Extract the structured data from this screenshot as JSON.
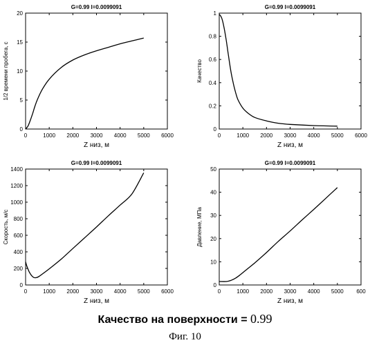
{
  "chart_data": [
    {
      "type": "line",
      "title": "G=0.99   l=0.0099091",
      "xlabel": "Z низ, м",
      "ylabel": "1/2 времени пробега, с",
      "xlim": [
        0,
        6000
      ],
      "ylim": [
        0,
        20
      ],
      "x_ticks": [
        "0",
        "1000",
        "2000",
        "3000",
        "4000",
        "5000",
        "6000"
      ],
      "y_ticks": [
        "0",
        "5",
        "10",
        "15",
        "20"
      ],
      "grid": false,
      "series": [
        {
          "values": [
            [
              0,
              0
            ],
            [
              100,
              0.5
            ],
            [
              200,
              1.5
            ],
            [
              300,
              2.7
            ],
            [
              400,
              4.0
            ],
            [
              500,
              5.1
            ],
            [
              700,
              6.8
            ],
            [
              1000,
              8.6
            ],
            [
              1500,
              10.6
            ],
            [
              2000,
              11.9
            ],
            [
              2500,
              12.8
            ],
            [
              3000,
              13.5
            ],
            [
              3500,
              14.1
            ],
            [
              4000,
              14.7
            ],
            [
              4500,
              15.2
            ],
            [
              5000,
              15.7
            ]
          ]
        }
      ]
    },
    {
      "type": "line",
      "title": "G=0.99   l=0.0099091",
      "xlabel": "Z низ, м",
      "ylabel": "Качество",
      "xlim": [
        0,
        6000
      ],
      "ylim": [
        0,
        1
      ],
      "x_ticks": [
        "0",
        "1000",
        "2000",
        "3000",
        "4000",
        "5000",
        "6000"
      ],
      "y_ticks": [
        "0",
        "0.2",
        "0.4",
        "0.6",
        "0.8",
        "1"
      ],
      "grid": false,
      "series": [
        {
          "values": [
            [
              0,
              0.99
            ],
            [
              100,
              0.96
            ],
            [
              200,
              0.88
            ],
            [
              300,
              0.76
            ],
            [
              400,
              0.62
            ],
            [
              500,
              0.49
            ],
            [
              600,
              0.39
            ],
            [
              700,
              0.31
            ],
            [
              800,
              0.25
            ],
            [
              1000,
              0.18
            ],
            [
              1200,
              0.14
            ],
            [
              1500,
              0.1
            ],
            [
              2000,
              0.07
            ],
            [
              2500,
              0.05
            ],
            [
              3000,
              0.04
            ],
            [
              4000,
              0.03
            ],
            [
              5000,
              0.025
            ]
          ]
        }
      ]
    },
    {
      "type": "line",
      "title": "G=0.99   l=0.0099091",
      "xlabel": "Z низ, м",
      "ylabel": "Скорость, м/с",
      "xlim": [
        0,
        6000
      ],
      "ylim": [
        0,
        1400
      ],
      "x_ticks": [
        "0",
        "1000",
        "2000",
        "3000",
        "4000",
        "5000",
        "6000"
      ],
      "y_ticks": [
        "0",
        "200",
        "400",
        "600",
        "800",
        "1000",
        "1200",
        "1400"
      ],
      "grid": false,
      "series": [
        {
          "values": [
            [
              0,
              280
            ],
            [
              50,
              230
            ],
            [
              150,
              160
            ],
            [
              250,
              115
            ],
            [
              350,
              90
            ],
            [
              450,
              88
            ],
            [
              550,
              100
            ],
            [
              700,
              130
            ],
            [
              1000,
              195
            ],
            [
              1500,
              310
            ],
            [
              2000,
              440
            ],
            [
              2500,
              570
            ],
            [
              3000,
              700
            ],
            [
              3500,
              835
            ],
            [
              4000,
              965
            ],
            [
              4500,
              1100
            ],
            [
              5000,
              1355
            ]
          ]
        }
      ]
    },
    {
      "type": "line",
      "title": "G=0.99   l=0.0099091",
      "xlabel": "Z низ, м",
      "ylabel": "Давление, МПа",
      "xlim": [
        0,
        6000
      ],
      "ylim": [
        0,
        50
      ],
      "x_ticks": [
        "0",
        "1000",
        "2000",
        "3000",
        "4000",
        "5000",
        "600"
      ],
      "y_ticks": [
        "0",
        "10",
        "20",
        "30",
        "40",
        "50"
      ],
      "grid": false,
      "series": [
        {
          "values": [
            [
              0,
              1.5
            ],
            [
              300,
              1.5
            ],
            [
              500,
              2.0
            ],
            [
              700,
              3.0
            ],
            [
              900,
              4.5
            ],
            [
              1200,
              7.0
            ],
            [
              1500,
              9.5
            ],
            [
              2000,
              14.0
            ],
            [
              2500,
              18.8
            ],
            [
              3000,
              23.3
            ],
            [
              3500,
              28.0
            ],
            [
              4000,
              32.6
            ],
            [
              4500,
              37.3
            ],
            [
              5000,
              42.0
            ]
          ]
        }
      ]
    }
  ],
  "caption": {
    "label": "Качество на поверхности =",
    "value": "0.99"
  },
  "figure_label": "Фиг. 10"
}
